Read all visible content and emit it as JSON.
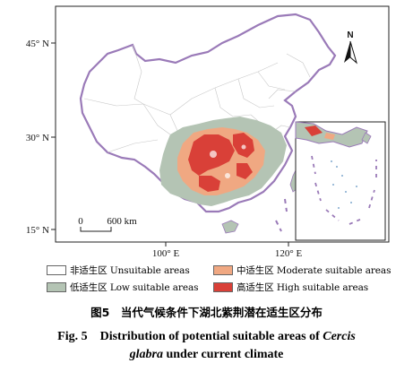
{
  "map": {
    "lat_ticks": [
      "45° N",
      "30° N",
      "15° N"
    ],
    "lon_ticks": [
      "100° E",
      "120° E"
    ],
    "north_label": "N",
    "scale_bar": {
      "start": "0",
      "end": "600 km"
    }
  },
  "legend": {
    "items": [
      {
        "label": "非适生区 Unsuitable areas",
        "color": "#ffffff"
      },
      {
        "label": "中适生区 Moderate suitable areas",
        "color": "#f0a882"
      },
      {
        "label": "低适生区 Low suitable areas",
        "color": "#b4c4b4"
      },
      {
        "label": "高适生区 High suitable areas",
        "color": "#d94038"
      }
    ]
  },
  "caption": {
    "zh": "图5　当代气候条件下湖北紫荆潜在适生区分布",
    "en_line1_prefix": "Fig. 5　Distribution of potential suitable areas of ",
    "en_line1_italic": "Cercis",
    "en_line2_italic": "glabra",
    "en_line2_suffix": " under current climate"
  },
  "colors": {
    "border_purple": "#9a7ab8",
    "boundary_gray": "#c8c8c8",
    "low": "#b4c4b4",
    "moderate": "#f0a882",
    "high": "#d94038",
    "inset_water": "#5b8fc0"
  }
}
